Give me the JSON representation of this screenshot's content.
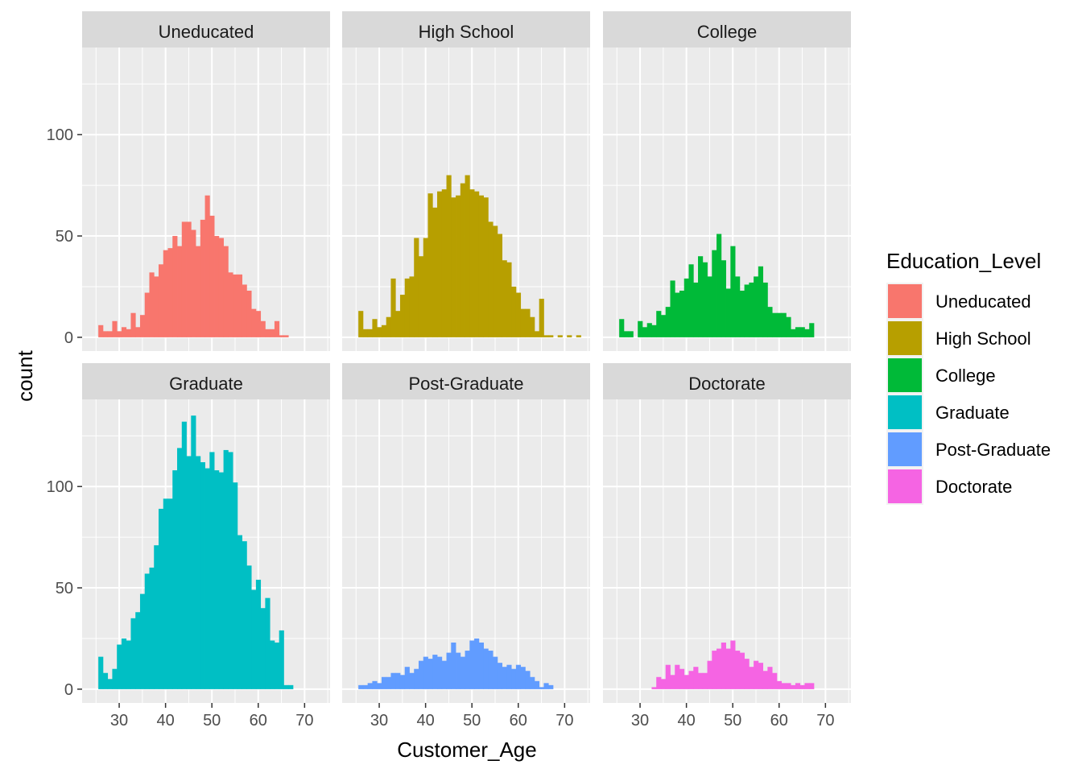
{
  "chart_data": {
    "type": "bar",
    "facets": [
      {
        "name": "Uneducated",
        "color": "#F8766D",
        "bins": [
          [
            26,
            6
          ],
          [
            27,
            3
          ],
          [
            28,
            3
          ],
          [
            29,
            8
          ],
          [
            30,
            3
          ],
          [
            31,
            5
          ],
          [
            32,
            4
          ],
          [
            33,
            12
          ],
          [
            34,
            5
          ],
          [
            35,
            11
          ],
          [
            36,
            22
          ],
          [
            37,
            32
          ],
          [
            38,
            30
          ],
          [
            39,
            36
          ],
          [
            40,
            43
          ],
          [
            41,
            44
          ],
          [
            42,
            50
          ],
          [
            43,
            45
          ],
          [
            44,
            57
          ],
          [
            45,
            57
          ],
          [
            46,
            53
          ],
          [
            47,
            45
          ],
          [
            48,
            58
          ],
          [
            49,
            70
          ],
          [
            50,
            60
          ],
          [
            51,
            50
          ],
          [
            52,
            49
          ],
          [
            53,
            45
          ],
          [
            54,
            32
          ],
          [
            55,
            31
          ],
          [
            56,
            31
          ],
          [
            57,
            26
          ],
          [
            58,
            23
          ],
          [
            59,
            14
          ],
          [
            60,
            13
          ],
          [
            61,
            8
          ],
          [
            62,
            4
          ],
          [
            63,
            4
          ],
          [
            64,
            8
          ],
          [
            65,
            1
          ],
          [
            66,
            1
          ]
        ]
      },
      {
        "name": "High School",
        "color": "#B79F00",
        "bins": [
          [
            26,
            13
          ],
          [
            27,
            4
          ],
          [
            28,
            4
          ],
          [
            29,
            9
          ],
          [
            30,
            5
          ],
          [
            31,
            6
          ],
          [
            32,
            10
          ],
          [
            33,
            29
          ],
          [
            34,
            13
          ],
          [
            35,
            21
          ],
          [
            36,
            29
          ],
          [
            37,
            30
          ],
          [
            38,
            49
          ],
          [
            39,
            40
          ],
          [
            40,
            49
          ],
          [
            41,
            71
          ],
          [
            42,
            64
          ],
          [
            43,
            72
          ],
          [
            44,
            73
          ],
          [
            45,
            80
          ],
          [
            46,
            69
          ],
          [
            47,
            70
          ],
          [
            48,
            76
          ],
          [
            49,
            80
          ],
          [
            50,
            73
          ],
          [
            51,
            72
          ],
          [
            52,
            70
          ],
          [
            53,
            69
          ],
          [
            54,
            57
          ],
          [
            55,
            55
          ],
          [
            56,
            51
          ],
          [
            57,
            38
          ],
          [
            58,
            37
          ],
          [
            59,
            25
          ],
          [
            60,
            22
          ],
          [
            61,
            14
          ],
          [
            62,
            14
          ],
          [
            63,
            10
          ],
          [
            64,
            3
          ],
          [
            65,
            19
          ],
          [
            66,
            1
          ],
          [
            67,
            1
          ],
          [
            69,
            1
          ],
          [
            71,
            1
          ],
          [
            73,
            1
          ]
        ]
      },
      {
        "name": "College",
        "color": "#00BA38",
        "bins": [
          [
            26,
            9
          ],
          [
            27,
            3
          ],
          [
            28,
            3
          ],
          [
            29,
            0
          ],
          [
            30,
            8
          ],
          [
            31,
            5
          ],
          [
            32,
            7
          ],
          [
            33,
            6
          ],
          [
            34,
            13
          ],
          [
            35,
            11
          ],
          [
            36,
            15
          ],
          [
            37,
            28
          ],
          [
            38,
            22
          ],
          [
            39,
            23
          ],
          [
            40,
            29
          ],
          [
            41,
            36
          ],
          [
            42,
            27
          ],
          [
            43,
            40
          ],
          [
            44,
            37
          ],
          [
            45,
            30
          ],
          [
            46,
            43
          ],
          [
            47,
            51
          ],
          [
            48,
            38
          ],
          [
            49,
            24
          ],
          [
            50,
            45
          ],
          [
            51,
            30
          ],
          [
            52,
            23
          ],
          [
            53,
            26
          ],
          [
            54,
            27
          ],
          [
            55,
            30
          ],
          [
            56,
            35
          ],
          [
            57,
            27
          ],
          [
            58,
            15
          ],
          [
            59,
            12
          ],
          [
            60,
            12
          ],
          [
            61,
            12
          ],
          [
            62,
            10
          ],
          [
            63,
            4
          ],
          [
            64,
            5
          ],
          [
            65,
            5
          ],
          [
            66,
            4
          ],
          [
            67,
            7
          ]
        ]
      },
      {
        "name": "Graduate",
        "color": "#00BFC4",
        "bins": [
          [
            26,
            16
          ],
          [
            27,
            8
          ],
          [
            28,
            5
          ],
          [
            29,
            10
          ],
          [
            30,
            22
          ],
          [
            31,
            25
          ],
          [
            32,
            24
          ],
          [
            33,
            35
          ],
          [
            34,
            38
          ],
          [
            35,
            47
          ],
          [
            36,
            57
          ],
          [
            37,
            60
          ],
          [
            38,
            71
          ],
          [
            39,
            89
          ],
          [
            40,
            94
          ],
          [
            41,
            94
          ],
          [
            42,
            108
          ],
          [
            43,
            119
          ],
          [
            44,
            132
          ],
          [
            45,
            115
          ],
          [
            46,
            135
          ],
          [
            47,
            115
          ],
          [
            48,
            112
          ],
          [
            49,
            109
          ],
          [
            50,
            117
          ],
          [
            51,
            108
          ],
          [
            52,
            107
          ],
          [
            53,
            118
          ],
          [
            54,
            117
          ],
          [
            55,
            102
          ],
          [
            56,
            76
          ],
          [
            57,
            73
          ],
          [
            58,
            61
          ],
          [
            59,
            49
          ],
          [
            60,
            54
          ],
          [
            61,
            40
          ],
          [
            62,
            45
          ],
          [
            63,
            24
          ],
          [
            64,
            23
          ],
          [
            65,
            29
          ],
          [
            66,
            2
          ],
          [
            67,
            2
          ]
        ]
      },
      {
        "name": "Post-Graduate",
        "color": "#619CFF",
        "bins": [
          [
            26,
            2
          ],
          [
            27,
            2
          ],
          [
            28,
            3
          ],
          [
            29,
            4
          ],
          [
            30,
            3
          ],
          [
            31,
            6
          ],
          [
            32,
            6
          ],
          [
            33,
            8
          ],
          [
            34,
            8
          ],
          [
            35,
            7
          ],
          [
            36,
            11
          ],
          [
            37,
            8
          ],
          [
            38,
            10
          ],
          [
            39,
            14
          ],
          [
            40,
            16
          ],
          [
            41,
            15
          ],
          [
            42,
            17
          ],
          [
            43,
            16
          ],
          [
            44,
            14
          ],
          [
            45,
            18
          ],
          [
            46,
            23
          ],
          [
            47,
            18
          ],
          [
            48,
            16
          ],
          [
            49,
            19
          ],
          [
            50,
            24
          ],
          [
            51,
            25
          ],
          [
            52,
            23
          ],
          [
            53,
            20
          ],
          [
            54,
            19
          ],
          [
            55,
            16
          ],
          [
            56,
            13
          ],
          [
            57,
            11
          ],
          [
            58,
            12
          ],
          [
            59,
            10
          ],
          [
            60,
            12
          ],
          [
            61,
            11
          ],
          [
            62,
            9
          ],
          [
            63,
            6
          ],
          [
            64,
            4
          ],
          [
            65,
            1
          ],
          [
            66,
            3
          ],
          [
            67,
            2
          ]
        ]
      },
      {
        "name": "Doctorate",
        "color": "#F564E3",
        "bins": [
          [
            33,
            1
          ],
          [
            34,
            6
          ],
          [
            35,
            5
          ],
          [
            36,
            12
          ],
          [
            37,
            7
          ],
          [
            38,
            12
          ],
          [
            39,
            10
          ],
          [
            40,
            7
          ],
          [
            41,
            9
          ],
          [
            42,
            11
          ],
          [
            43,
            8
          ],
          [
            44,
            8
          ],
          [
            45,
            14
          ],
          [
            46,
            19
          ],
          [
            47,
            20
          ],
          [
            48,
            23
          ],
          [
            49,
            20
          ],
          [
            50,
            24
          ],
          [
            51,
            19
          ],
          [
            52,
            18
          ],
          [
            53,
            15
          ],
          [
            54,
            11
          ],
          [
            55,
            14
          ],
          [
            56,
            13
          ],
          [
            57,
            9
          ],
          [
            58,
            11
          ],
          [
            59,
            8
          ],
          [
            60,
            4
          ],
          [
            61,
            3
          ],
          [
            62,
            3
          ],
          [
            63,
            2
          ],
          [
            64,
            3
          ],
          [
            65,
            2
          ],
          [
            66,
            3
          ],
          [
            67,
            3
          ]
        ]
      }
    ],
    "xlabel": "Customer_Age",
    "ylabel": "count",
    "xlim": [
      22.0,
      75.5
    ],
    "ylim": [
      -6.8,
      143
    ],
    "x_ticks": [
      30,
      40,
      50,
      60,
      70
    ],
    "y_ticks": [
      0,
      50,
      100
    ],
    "grid": true,
    "legend": {
      "title": "Education_Level",
      "placement": "right",
      "items": [
        {
          "label": "Uneducated",
          "color": "#F8766D"
        },
        {
          "label": "High School",
          "color": "#B79F00"
        },
        {
          "label": "College",
          "color": "#00BA38"
        },
        {
          "label": "Graduate",
          "color": "#00BFC4"
        },
        {
          "label": "Post-Graduate",
          "color": "#619CFF"
        },
        {
          "label": "Doctorate",
          "color": "#F564E3"
        }
      ]
    }
  }
}
